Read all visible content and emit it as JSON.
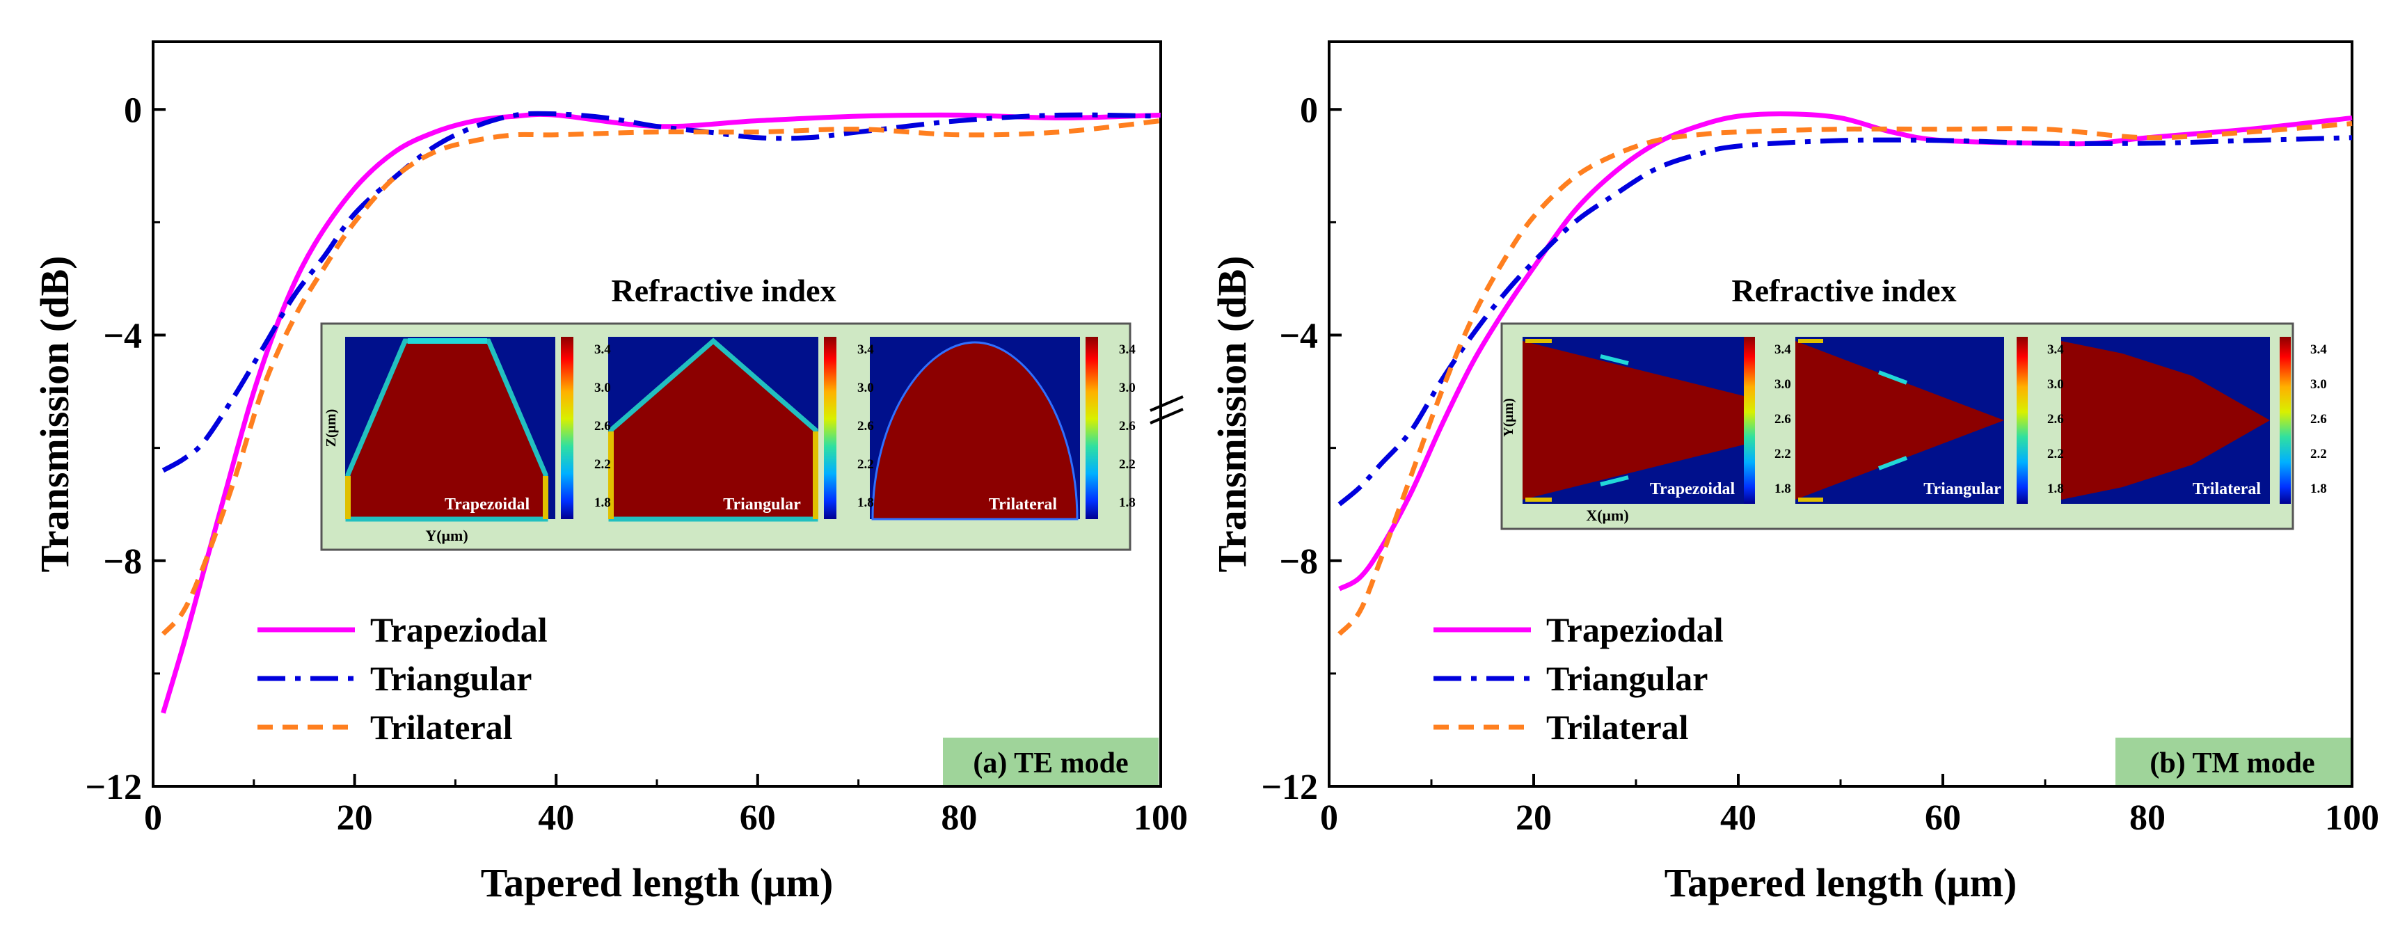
{
  "chart_data": [
    {
      "type": "line",
      "panel_label": "(a) TE mode",
      "xlabel": "Tapered length (μm)",
      "ylabel": "Transmission (dB)",
      "xlim": [
        0,
        100
      ],
      "ylim": [
        -12,
        1.2
      ],
      "xticks": [
        "0",
        "20",
        "40",
        "60",
        "80",
        "100"
      ],
      "yticks": [
        "−12",
        "−8",
        "−4",
        "0"
      ],
      "legend": [
        "Trapeziodal",
        "Triangular",
        "Trilateral"
      ],
      "inset": {
        "title": "Refractive index",
        "ylabel": "Z(μm)",
        "xlabel": "Y(μm)",
        "panels": [
          "Trapezoidal",
          "Triangular",
          "Trilateral"
        ],
        "colorbar_ticks": [
          "3.4",
          "3.0",
          "2.6",
          "2.2",
          "1.8"
        ]
      },
      "series": [
        {
          "name": "Trapeziodal",
          "color": "#ff00ff",
          "style": "solid",
          "x": [
            1,
            3,
            5,
            7,
            10,
            13,
            16,
            20,
            24,
            28,
            32,
            36,
            40,
            50,
            60,
            70,
            80,
            90,
            100
          ],
          "y": [
            -10.7,
            -9.5,
            -8.2,
            -6.9,
            -5.0,
            -3.5,
            -2.4,
            -1.4,
            -0.75,
            -0.4,
            -0.2,
            -0.12,
            -0.1,
            -0.3,
            -0.2,
            -0.12,
            -0.1,
            -0.15,
            -0.1
          ]
        },
        {
          "name": "Triangular",
          "color": "#0000dd",
          "style": "dashdot",
          "x": [
            1,
            3,
            5,
            8,
            11,
            14,
            17,
            20,
            24,
            28,
            32,
            36,
            40,
            45,
            50,
            55,
            60,
            65,
            70,
            80,
            90,
            100
          ],
          "y": [
            -6.4,
            -6.2,
            -5.9,
            -5.1,
            -4.2,
            -3.3,
            -2.6,
            -1.85,
            -1.2,
            -0.65,
            -0.3,
            -0.1,
            -0.08,
            -0.15,
            -0.3,
            -0.4,
            -0.5,
            -0.5,
            -0.4,
            -0.2,
            -0.1,
            -0.12
          ]
        },
        {
          "name": "Trilateral",
          "color": "#ff7f1f",
          "style": "dashed",
          "x": [
            1,
            3,
            5,
            8,
            11,
            14,
            17,
            20,
            24,
            28,
            32,
            36,
            40,
            50,
            60,
            70,
            80,
            90,
            100
          ],
          "y": [
            -9.3,
            -8.9,
            -8.1,
            -6.6,
            -4.9,
            -3.7,
            -2.8,
            -2.0,
            -1.2,
            -0.75,
            -0.55,
            -0.45,
            -0.45,
            -0.4,
            -0.4,
            -0.35,
            -0.45,
            -0.4,
            -0.2
          ]
        }
      ]
    },
    {
      "type": "line",
      "panel_label": "(b) TM mode",
      "xlabel": "Tapered length (μm)",
      "ylabel": "Transmission (dB)",
      "xlim": [
        0,
        100
      ],
      "ylim": [
        -12,
        1.2
      ],
      "xticks": [
        "0",
        "20",
        "40",
        "60",
        "80",
        "100"
      ],
      "yticks": [
        "−12",
        "−8",
        "−4",
        "0"
      ],
      "legend": [
        "Trapeziodal",
        "Triangular",
        "Trilateral"
      ],
      "inset": {
        "title": "Refractive index",
        "ylabel": "Y(μm)",
        "xlabel": "X(μm)",
        "panels": [
          "Trapezoidal",
          "Triangular",
          "Trilateral"
        ],
        "colorbar_ticks": [
          "3.4",
          "3.0",
          "2.6",
          "2.2",
          "1.8"
        ]
      },
      "series": [
        {
          "name": "Trapeziodal",
          "color": "#ff00ff",
          "style": "solid",
          "x": [
            1,
            3,
            5,
            8,
            11,
            14,
            17,
            20,
            24,
            28,
            32,
            36,
            40,
            45,
            50,
            55,
            60,
            70,
            75,
            80,
            90,
            100
          ],
          "y": [
            -8.5,
            -8.3,
            -7.8,
            -6.8,
            -5.6,
            -4.5,
            -3.6,
            -2.8,
            -1.8,
            -1.1,
            -0.6,
            -0.3,
            -0.12,
            -0.08,
            -0.15,
            -0.4,
            -0.55,
            -0.6,
            -0.6,
            -0.5,
            -0.35,
            -0.15
          ]
        },
        {
          "name": "Triangular",
          "color": "#0000dd",
          "style": "dashdot",
          "x": [
            1,
            3,
            5,
            8,
            11,
            14,
            17,
            20,
            24,
            28,
            32,
            36,
            40,
            50,
            60,
            70,
            80,
            90,
            100
          ],
          "y": [
            -7.0,
            -6.7,
            -6.3,
            -5.7,
            -4.8,
            -4.0,
            -3.3,
            -2.7,
            -2.0,
            -1.5,
            -1.05,
            -0.8,
            -0.65,
            -0.55,
            -0.55,
            -0.6,
            -0.6,
            -0.55,
            -0.5
          ]
        },
        {
          "name": "Trilateral",
          "color": "#ff7f1f",
          "style": "dashed",
          "x": [
            1,
            3,
            5,
            8,
            11,
            14,
            17,
            20,
            24,
            28,
            32,
            36,
            40,
            50,
            60,
            70,
            80,
            90,
            100
          ],
          "y": [
            -9.3,
            -8.9,
            -8.0,
            -6.5,
            -5.0,
            -3.7,
            -2.7,
            -1.9,
            -1.2,
            -0.8,
            -0.55,
            -0.45,
            -0.4,
            -0.35,
            -0.35,
            -0.35,
            -0.5,
            -0.4,
            -0.25
          ]
        }
      ]
    }
  ]
}
